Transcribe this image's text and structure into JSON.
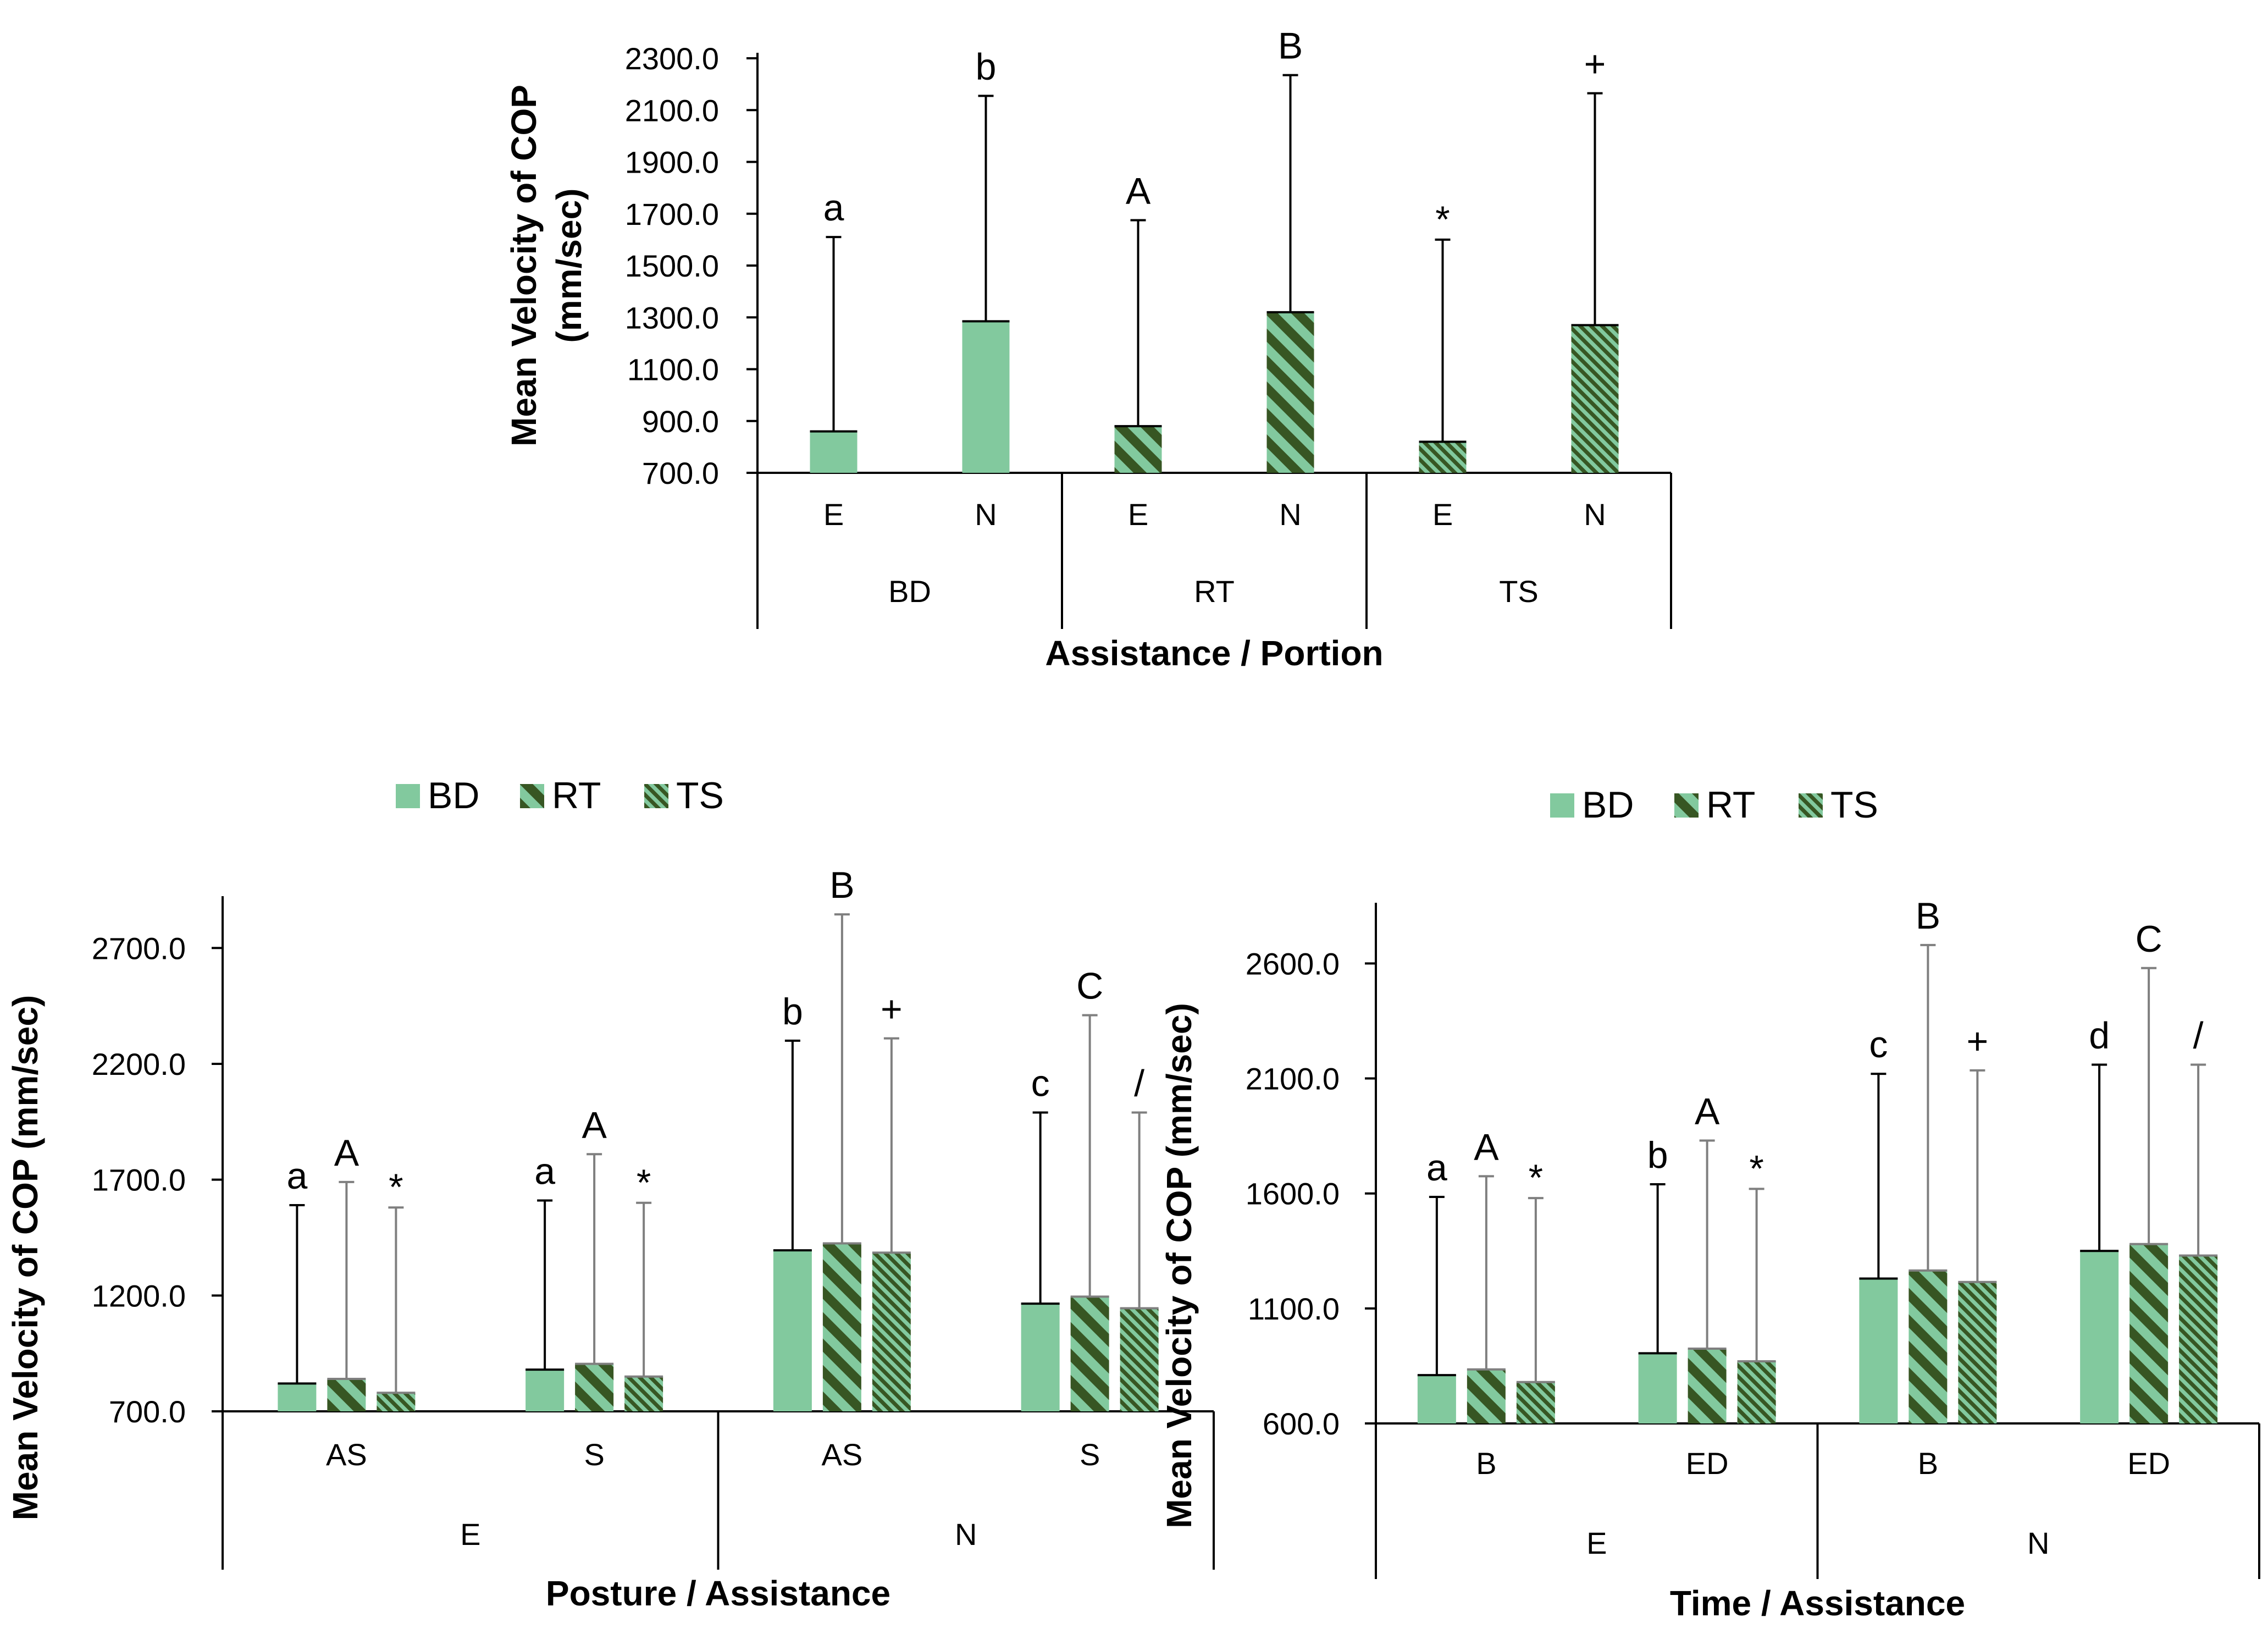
{
  "colors": {
    "bar": "#82C99E",
    "hatch": "#375623",
    "axis": "#000000",
    "error_bar_top": "#000000",
    "error_bar_bottom": "#7F7F7F",
    "background": "#FFFFFF"
  },
  "chart_data": [
    {
      "id": "top",
      "type": "bar",
      "ylabel": [
        "Mean Velocity of COP",
        "(mm/sec)"
      ],
      "xlabel": "Assistance / Portion",
      "ylim": [
        700,
        2300
      ],
      "yticks": [
        "700.0",
        "900.0",
        "1100.0",
        "1300.0",
        "1500.0",
        "1700.0",
        "1900.0",
        "2100.0",
        "2300.0"
      ],
      "groups": [
        {
          "label": "BD",
          "categories": [
            {
              "label": "E",
              "bars": [
                {
                  "series": "BD",
                  "value": 860,
                  "error_top": 1610,
                  "sig": "a"
                }
              ]
            },
            {
              "label": "N",
              "bars": [
                {
                  "series": "BD",
                  "value": 1285,
                  "error_top": 2155,
                  "sig": "b"
                }
              ]
            }
          ]
        },
        {
          "label": "RT",
          "categories": [
            {
              "label": "E",
              "bars": [
                {
                  "series": "RT",
                  "value": 880,
                  "error_top": 1675,
                  "sig": "A"
                }
              ]
            },
            {
              "label": "N",
              "bars": [
                {
                  "series": "RT",
                  "value": 1320,
                  "error_top": 2235,
                  "sig": "B"
                }
              ]
            }
          ]
        },
        {
          "label": "TS",
          "categories": [
            {
              "label": "E",
              "bars": [
                {
                  "series": "TS",
                  "value": 820,
                  "error_top": 1600,
                  "sig": "*"
                }
              ]
            },
            {
              "label": "N",
              "bars": [
                {
                  "series": "TS",
                  "value": 1270,
                  "error_top": 2165,
                  "sig": "+"
                }
              ]
            }
          ]
        }
      ]
    },
    {
      "id": "bottom-left",
      "type": "bar",
      "ylabel": [
        "Mean Velocity of COP (mm/sec)"
      ],
      "xlabel": "Posture / Assistance",
      "ylim": [
        700,
        2900
      ],
      "yticks": [
        "700.0",
        "1200.0",
        "1700.0",
        "2200.0",
        "2700.0"
      ],
      "legend": [
        "BD",
        "RT",
        "TS"
      ],
      "groups": [
        {
          "label": "E",
          "categories": [
            {
              "label": "AS",
              "bars": [
                {
                  "series": "BD",
                  "value": 820,
                  "error_top": 1590,
                  "sig": "a"
                },
                {
                  "series": "RT",
                  "value": 840,
                  "error_top": 1690,
                  "sig": "A"
                },
                {
                  "series": "TS",
                  "value": 780,
                  "error_top": 1580,
                  "sig": "*"
                }
              ]
            },
            {
              "label": "S",
              "bars": [
                {
                  "series": "BD",
                  "value": 880,
                  "error_top": 1610,
                  "sig": "a"
                },
                {
                  "series": "RT",
                  "value": 905,
                  "error_top": 1810,
                  "sig": "A"
                },
                {
                  "series": "TS",
                  "value": 850,
                  "error_top": 1600,
                  "sig": "*"
                }
              ]
            }
          ]
        },
        {
          "label": "N",
          "categories": [
            {
              "label": "AS",
              "bars": [
                {
                  "series": "BD",
                  "value": 1395,
                  "error_top": 2300,
                  "sig": "b"
                },
                {
                  "series": "RT",
                  "value": 1425,
                  "error_top": 2845,
                  "sig": "B"
                },
                {
                  "series": "TS",
                  "value": 1385,
                  "error_top": 2310,
                  "sig": "+"
                }
              ]
            },
            {
              "label": "S",
              "bars": [
                {
                  "series": "BD",
                  "value": 1165,
                  "error_top": 1990,
                  "sig": "c"
                },
                {
                  "series": "RT",
                  "value": 1195,
                  "error_top": 2410,
                  "sig": "C"
                },
                {
                  "series": "TS",
                  "value": 1145,
                  "error_top": 1990,
                  "sig": "/"
                }
              ]
            }
          ]
        }
      ]
    },
    {
      "id": "bottom-right",
      "type": "bar",
      "ylabel": [
        "Mean Velocity of COP (mm/sec)"
      ],
      "xlabel": "Time / Assistance",
      "ylim": [
        600,
        2840
      ],
      "yticks": [
        "600.0",
        "1100.0",
        "1600.0",
        "2100.0",
        "2600.0"
      ],
      "legend": [
        "BD",
        "RT",
        "TS"
      ],
      "groups": [
        {
          "label": "E",
          "categories": [
            {
              "label": "B",
              "bars": [
                {
                  "series": "BD",
                  "value": 810,
                  "error_top": 1585,
                  "sig": "a"
                },
                {
                  "series": "RT",
                  "value": 835,
                  "error_top": 1675,
                  "sig": "A"
                },
                {
                  "series": "TS",
                  "value": 780,
                  "error_top": 1580,
                  "sig": "*"
                }
              ]
            },
            {
              "label": "ED",
              "bars": [
                {
                  "series": "BD",
                  "value": 905,
                  "error_top": 1640,
                  "sig": "b"
                },
                {
                  "series": "RT",
                  "value": 925,
                  "error_top": 1830,
                  "sig": "A"
                },
                {
                  "series": "TS",
                  "value": 870,
                  "error_top": 1620,
                  "sig": "*"
                }
              ]
            }
          ]
        },
        {
          "label": "N",
          "categories": [
            {
              "label": "B",
              "bars": [
                {
                  "series": "BD",
                  "value": 1230,
                  "error_top": 2120,
                  "sig": "c"
                },
                {
                  "series": "RT",
                  "value": 1265,
                  "error_top": 2680,
                  "sig": "B"
                },
                {
                  "series": "TS",
                  "value": 1215,
                  "error_top": 2135,
                  "sig": "+"
                }
              ]
            },
            {
              "label": "ED",
              "bars": [
                {
                  "series": "BD",
                  "value": 1350,
                  "error_top": 2160,
                  "sig": "d"
                },
                {
                  "series": "RT",
                  "value": 1380,
                  "error_top": 2580,
                  "sig": "C"
                },
                {
                  "series": "TS",
                  "value": 1330,
                  "error_top": 2160,
                  "sig": "/"
                }
              ]
            }
          ]
        }
      ]
    }
  ]
}
